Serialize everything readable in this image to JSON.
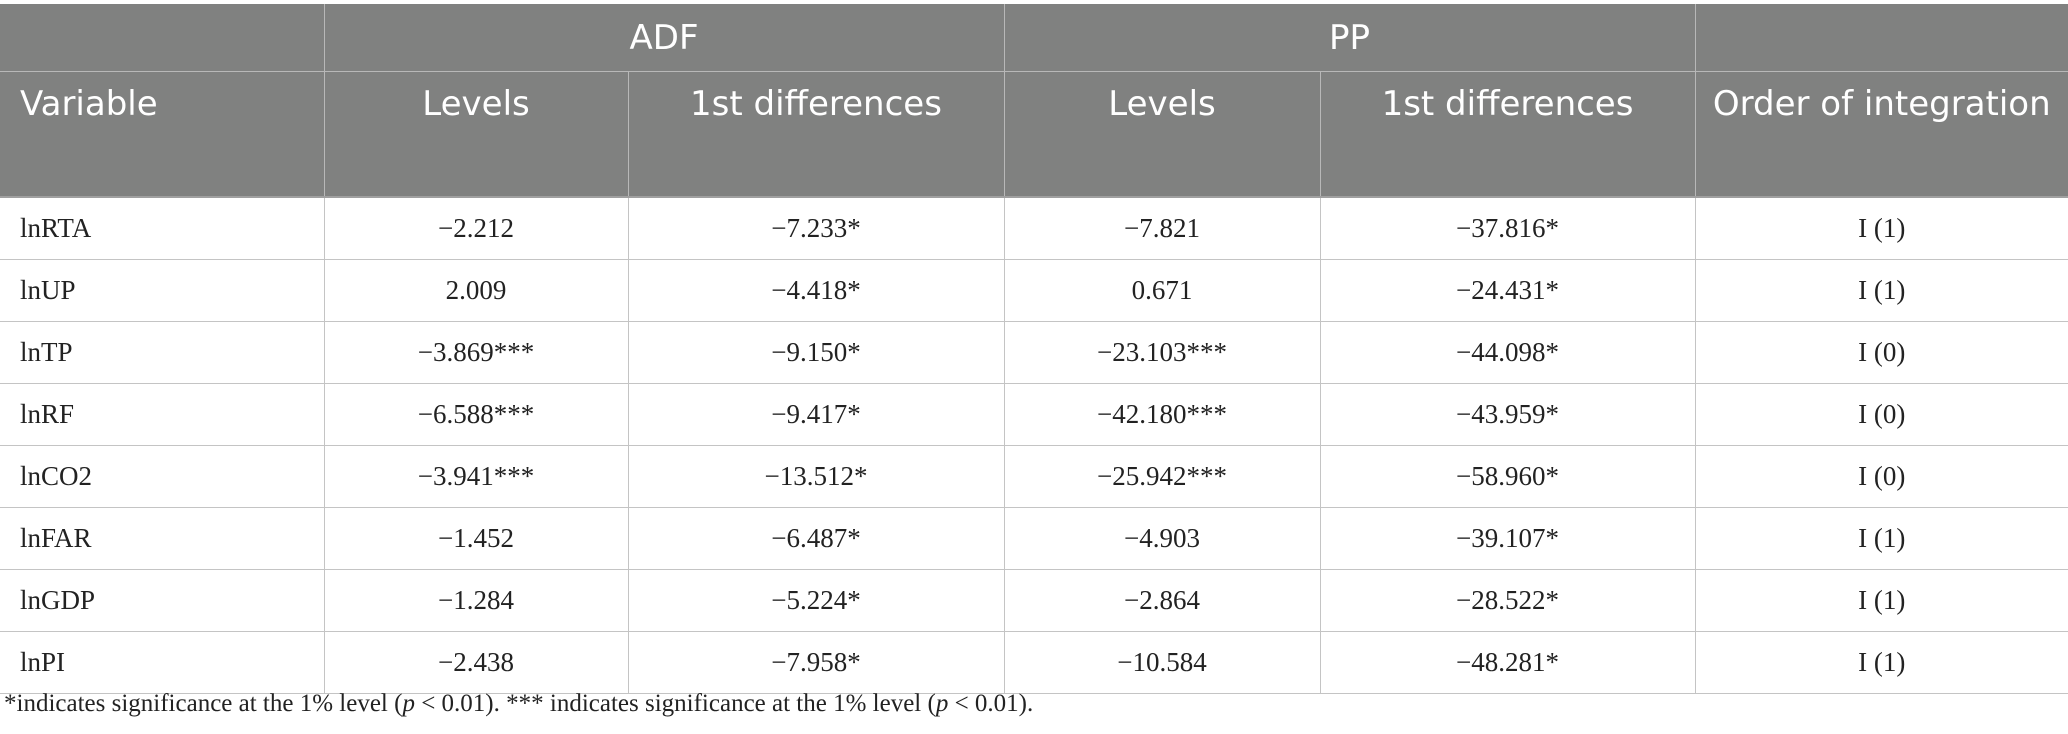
{
  "header": {
    "group_adf": "ADF",
    "group_pp": "PP",
    "variable": "Variable",
    "adf_levels": "Levels",
    "adf_diff": "1st differences",
    "pp_levels": "Levels",
    "pp_diff": "1st differences",
    "order": "Order of integration"
  },
  "rows": [
    {
      "var": "lnRTA",
      "adf_levels": "−2.212",
      "adf_diff": "−7.233*",
      "pp_levels": "−7.821",
      "pp_diff": "−37.816*",
      "order": "I (1)"
    },
    {
      "var": "lnUP",
      "adf_levels": "2.009",
      "adf_diff": "−4.418*",
      "pp_levels": "0.671",
      "pp_diff": "−24.431*",
      "order": "I (1)"
    },
    {
      "var": "lnTP",
      "adf_levels": "−3.869***",
      "adf_diff": "−9.150*",
      "pp_levels": "−23.103***",
      "pp_diff": "−44.098*",
      "order": "I (0)"
    },
    {
      "var": "lnRF",
      "adf_levels": "−6.588***",
      "adf_diff": "−9.417*",
      "pp_levels": "−42.180***",
      "pp_diff": "−43.959*",
      "order": "I (0)"
    },
    {
      "var": "lnCO2",
      "adf_levels": "−3.941***",
      "adf_diff": "−13.512*",
      "pp_levels": "−25.942***",
      "pp_diff": "−58.960*",
      "order": "I (0)"
    },
    {
      "var": "lnFAR",
      "adf_levels": "−1.452",
      "adf_diff": "−6.487*",
      "pp_levels": "−4.903",
      "pp_diff": "−39.107*",
      "order": "I (1)"
    },
    {
      "var": "lnGDP",
      "adf_levels": "−1.284",
      "adf_diff": "−5.224*",
      "pp_levels": "−2.864",
      "pp_diff": "−28.522*",
      "order": "I (1)"
    },
    {
      "var": "lnPI",
      "adf_levels": "−2.438",
      "adf_diff": "−7.958*",
      "pp_levels": "−10.584",
      "pp_diff": "−48.281*",
      "order": "I (1)"
    }
  ],
  "note": {
    "part1": "*indicates significance at the 1% level (",
    "p1": "p",
    "part2": " < 0.01). *** indicates significance at the 1% level (",
    "p2": "p",
    "part3": " < 0.01)."
  }
}
